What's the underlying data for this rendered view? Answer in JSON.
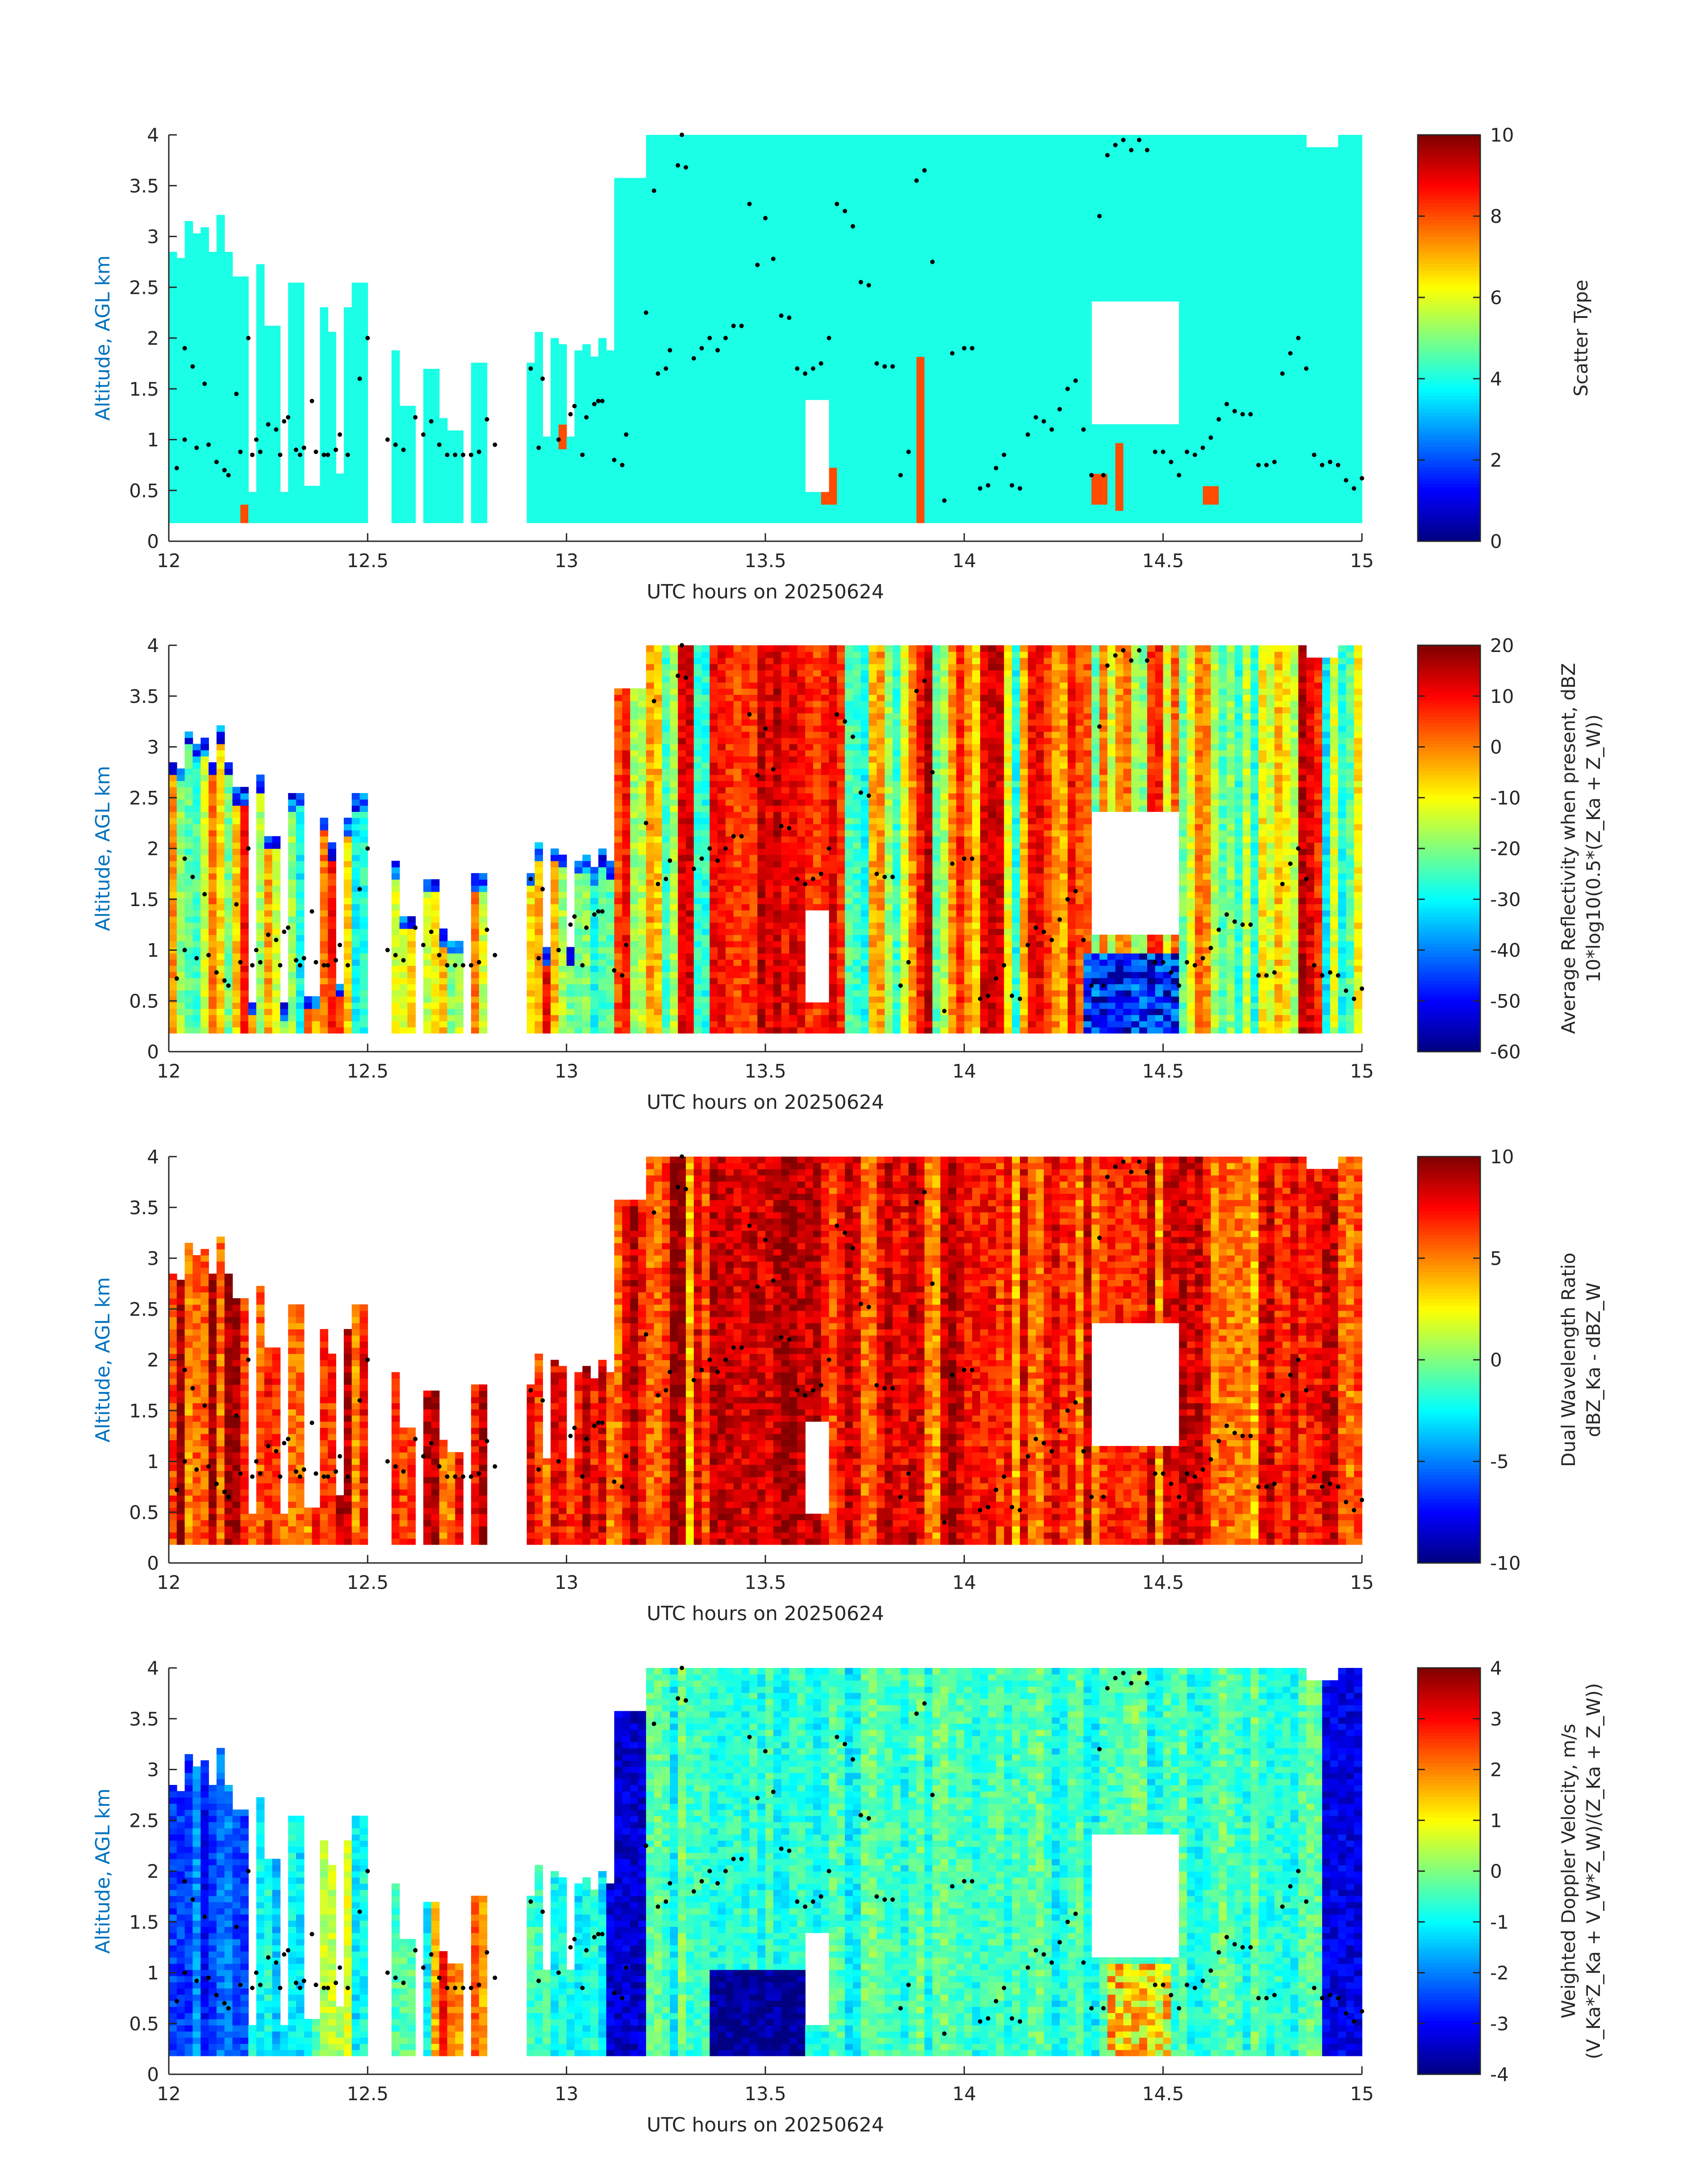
{
  "chart_data": [
    {
      "type": "heatmap",
      "xlabel": "UTC hours on 20250624",
      "ylabel": "Altitude, AGL km",
      "xlim": [
        12,
        15
      ],
      "ylim": [
        0,
        4
      ],
      "xticks": [
        12,
        12.5,
        13,
        13.5,
        14,
        14.5,
        15
      ],
      "xtick_labels": [
        "12",
        "12.5",
        "13",
        "13.5",
        "14",
        "14.5",
        "15"
      ],
      "yticks": [
        0,
        0.5,
        1,
        1.5,
        2,
        2.5,
        3,
        3.5,
        4
      ],
      "ytick_labels": [
        "0",
        "0.5",
        "1",
        "1.5",
        "2",
        "2.5",
        "3",
        "3.5",
        "4"
      ],
      "colorbar": {
        "label_lines": [
          "Scatter Type"
        ],
        "clim": [
          0,
          10
        ],
        "ticks": [
          0,
          2,
          4,
          6,
          8,
          10
        ],
        "tick_labels": [
          "0",
          "2",
          "4",
          "6",
          "8",
          "10"
        ],
        "colormap": "jet"
      },
      "field_description": "Mostly scatter type ~4 (cyan) with isolated columns of ~8 (orange-red) near 12.5, 12.6, 13.0, 13.65, 13.9, 14.3-14.4, 14.6 h"
    },
    {
      "type": "heatmap",
      "xlabel": "UTC hours on 20250624",
      "ylabel": "Altitude, AGL km",
      "xlim": [
        12,
        15
      ],
      "ylim": [
        0,
        4
      ],
      "xticks": [
        12,
        12.5,
        13,
        13.5,
        14,
        14.5,
        15
      ],
      "xtick_labels": [
        "12",
        "12.5",
        "13",
        "13.5",
        "14",
        "14.5",
        "15"
      ],
      "yticks": [
        0,
        0.5,
        1,
        1.5,
        2,
        2.5,
        3,
        3.5,
        4
      ],
      "ytick_labels": [
        "0",
        "0.5",
        "1",
        "1.5",
        "2",
        "2.5",
        "3",
        "3.5",
        "4"
      ],
      "colorbar": {
        "label_lines": [
          "Average Reflectivity when present, dBZ",
          "10*log10(0.5*(Z_Ka + Z_W))"
        ],
        "clim": [
          -60,
          20
        ],
        "ticks": [
          -60,
          -50,
          -40,
          -30,
          -20,
          -10,
          0,
          10,
          20
        ],
        "tick_labels": [
          "-60",
          "-50",
          "-40",
          "-30",
          "-20",
          "-10",
          "0",
          "10",
          "20"
        ],
        "colormap": "jet"
      }
    },
    {
      "type": "heatmap",
      "xlabel": "UTC hours on 20250624",
      "ylabel": "Altitude, AGL km",
      "xlim": [
        12,
        15
      ],
      "ylim": [
        0,
        4
      ],
      "xticks": [
        12,
        12.5,
        13,
        13.5,
        14,
        14.5,
        15
      ],
      "xtick_labels": [
        "12",
        "12.5",
        "13",
        "13.5",
        "14",
        "14.5",
        "15"
      ],
      "yticks": [
        0,
        0.5,
        1,
        1.5,
        2,
        2.5,
        3,
        3.5,
        4
      ],
      "ytick_labels": [
        "0",
        "0.5",
        "1",
        "1.5",
        "2",
        "2.5",
        "3",
        "3.5",
        "4"
      ],
      "colorbar": {
        "label_lines": [
          "Dual Wavelength Ratio",
          "dBZ_Ka - dBZ_W"
        ],
        "clim": [
          -10,
          10
        ],
        "ticks": [
          -10,
          -5,
          0,
          5,
          10
        ],
        "tick_labels": [
          "-10",
          "-5",
          "0",
          "5",
          "10"
        ],
        "colormap": "jet"
      }
    },
    {
      "type": "heatmap",
      "xlabel": "UTC hours on 20250624",
      "ylabel": "Altitude, AGL km",
      "xlim": [
        12,
        15
      ],
      "ylim": [
        0,
        4
      ],
      "xticks": [
        12,
        12.5,
        13,
        13.5,
        14,
        14.5,
        15
      ],
      "xtick_labels": [
        "12",
        "12.5",
        "13",
        "13.5",
        "14",
        "14.5",
        "15"
      ],
      "yticks": [
        0,
        0.5,
        1,
        1.5,
        2,
        2.5,
        3,
        3.5,
        4
      ],
      "ytick_labels": [
        "0",
        "0.5",
        "1",
        "1.5",
        "2",
        "2.5",
        "3",
        "3.5",
        "4"
      ],
      "colorbar": {
        "label_lines": [
          "Weighted Doppler Velocity, m/s",
          "(V_Ka*Z_Ka + V_W*Z_W)/(Z_Ka + Z_W))"
        ],
        "clim": [
          -4,
          4
        ],
        "ticks": [
          -4,
          -3,
          -2,
          -1,
          0,
          1,
          2,
          3,
          4
        ],
        "tick_labels": [
          "-4",
          "-3",
          "-2",
          "-1",
          "0",
          "1",
          "2",
          "3",
          "4"
        ],
        "colormap": "jet"
      }
    }
  ],
  "cloud_base_points": {
    "description": "black dots overlaid on all four panels",
    "points": [
      [
        12.02,
        0.72
      ],
      [
        12.04,
        1.0
      ],
      [
        12.04,
        1.9
      ],
      [
        12.06,
        1.72
      ],
      [
        12.07,
        0.92
      ],
      [
        12.09,
        1.55
      ],
      [
        12.1,
        0.95
      ],
      [
        12.12,
        0.78
      ],
      [
        12.14,
        0.7
      ],
      [
        12.15,
        0.65
      ],
      [
        12.17,
        1.45
      ],
      [
        12.18,
        0.88
      ],
      [
        12.2,
        2.0
      ],
      [
        12.21,
        0.85
      ],
      [
        12.22,
        1.0
      ],
      [
        12.23,
        0.88
      ],
      [
        12.25,
        1.15
      ],
      [
        12.27,
        1.1
      ],
      [
        12.28,
        0.85
      ],
      [
        12.29,
        1.18
      ],
      [
        12.3,
        1.22
      ],
      [
        12.32,
        0.9
      ],
      [
        12.33,
        0.85
      ],
      [
        12.34,
        0.92
      ],
      [
        12.36,
        1.38
      ],
      [
        12.37,
        0.88
      ],
      [
        12.39,
        0.85
      ],
      [
        12.4,
        0.85
      ],
      [
        12.42,
        0.9
      ],
      [
        12.43,
        1.05
      ],
      [
        12.45,
        0.85
      ],
      [
        12.48,
        1.6
      ],
      [
        12.5,
        2.0
      ],
      [
        12.55,
        1.0
      ],
      [
        12.57,
        0.95
      ],
      [
        12.59,
        0.9
      ],
      [
        12.62,
        1.22
      ],
      [
        12.64,
        1.05
      ],
      [
        12.66,
        1.18
      ],
      [
        12.68,
        0.95
      ],
      [
        12.7,
        0.85
      ],
      [
        12.72,
        0.85
      ],
      [
        12.74,
        0.85
      ],
      [
        12.76,
        0.85
      ],
      [
        12.78,
        0.88
      ],
      [
        12.8,
        1.2
      ],
      [
        12.82,
        0.95
      ],
      [
        12.91,
        1.7
      ],
      [
        12.93,
        0.92
      ],
      [
        12.94,
        1.6
      ],
      [
        12.98,
        1.0
      ],
      [
        13.01,
        1.25
      ],
      [
        13.02,
        1.33
      ],
      [
        13.04,
        0.85
      ],
      [
        13.05,
        1.22
      ],
      [
        13.07,
        1.35
      ],
      [
        13.08,
        1.38
      ],
      [
        13.09,
        1.38
      ],
      [
        13.12,
        0.8
      ],
      [
        13.14,
        0.75
      ],
      [
        13.15,
        1.05
      ],
      [
        13.2,
        2.25
      ],
      [
        13.22,
        3.45
      ],
      [
        13.23,
        1.65
      ],
      [
        13.25,
        1.7
      ],
      [
        13.26,
        1.88
      ],
      [
        13.28,
        3.7
      ],
      [
        13.29,
        4.0
      ],
      [
        13.3,
        3.68
      ],
      [
        13.32,
        1.8
      ],
      [
        13.34,
        1.9
      ],
      [
        13.36,
        2.0
      ],
      [
        13.38,
        1.88
      ],
      [
        13.4,
        2.0
      ],
      [
        13.42,
        2.12
      ],
      [
        13.44,
        2.12
      ],
      [
        13.46,
        3.32
      ],
      [
        13.48,
        2.72
      ],
      [
        13.5,
        3.18
      ],
      [
        13.52,
        2.78
      ],
      [
        13.54,
        2.22
      ],
      [
        13.56,
        2.2
      ],
      [
        13.58,
        1.7
      ],
      [
        13.6,
        1.65
      ],
      [
        13.62,
        1.7
      ],
      [
        13.64,
        1.75
      ],
      [
        13.66,
        2.0
      ],
      [
        13.68,
        3.32
      ],
      [
        13.7,
        3.25
      ],
      [
        13.72,
        3.1
      ],
      [
        13.74,
        2.55
      ],
      [
        13.76,
        2.52
      ],
      [
        13.78,
        1.75
      ],
      [
        13.8,
        1.72
      ],
      [
        13.82,
        1.72
      ],
      [
        13.84,
        0.65
      ],
      [
        13.86,
        0.88
      ],
      [
        13.88,
        3.55
      ],
      [
        13.9,
        3.65
      ],
      [
        13.92,
        2.75
      ],
      [
        13.95,
        0.4
      ],
      [
        13.97,
        1.85
      ],
      [
        14.0,
        1.9
      ],
      [
        14.02,
        1.9
      ],
      [
        14.04,
        0.52
      ],
      [
        14.06,
        0.55
      ],
      [
        14.08,
        0.72
      ],
      [
        14.1,
        0.85
      ],
      [
        14.12,
        0.55
      ],
      [
        14.14,
        0.52
      ],
      [
        14.16,
        1.05
      ],
      [
        14.18,
        1.22
      ],
      [
        14.2,
        1.18
      ],
      [
        14.22,
        1.1
      ],
      [
        14.24,
        1.3
      ],
      [
        14.26,
        1.5
      ],
      [
        14.28,
        1.58
      ],
      [
        14.3,
        1.1
      ],
      [
        14.32,
        0.65
      ],
      [
        14.34,
        3.2
      ],
      [
        14.35,
        0.65
      ],
      [
        14.36,
        3.8
      ],
      [
        14.38,
        3.9
      ],
      [
        14.4,
        3.95
      ],
      [
        14.42,
        3.85
      ],
      [
        14.44,
        3.95
      ],
      [
        14.46,
        3.85
      ],
      [
        14.48,
        0.88
      ],
      [
        14.5,
        0.88
      ],
      [
        14.52,
        0.78
      ],
      [
        14.54,
        0.65
      ],
      [
        14.56,
        0.88
      ],
      [
        14.58,
        0.85
      ],
      [
        14.6,
        0.92
      ],
      [
        14.62,
        1.02
      ],
      [
        14.64,
        1.2
      ],
      [
        14.66,
        1.35
      ],
      [
        14.68,
        1.28
      ],
      [
        14.7,
        1.25
      ],
      [
        14.72,
        1.25
      ],
      [
        14.74,
        0.75
      ],
      [
        14.76,
        0.75
      ],
      [
        14.78,
        0.78
      ],
      [
        14.8,
        1.65
      ],
      [
        14.82,
        1.85
      ],
      [
        14.84,
        2.0
      ],
      [
        14.86,
        1.7
      ],
      [
        14.88,
        0.85
      ],
      [
        14.9,
        0.75
      ],
      [
        14.92,
        0.78
      ],
      [
        14.94,
        0.75
      ],
      [
        14.96,
        0.6
      ],
      [
        14.98,
        0.52
      ],
      [
        15.0,
        0.62
      ]
    ]
  }
}
